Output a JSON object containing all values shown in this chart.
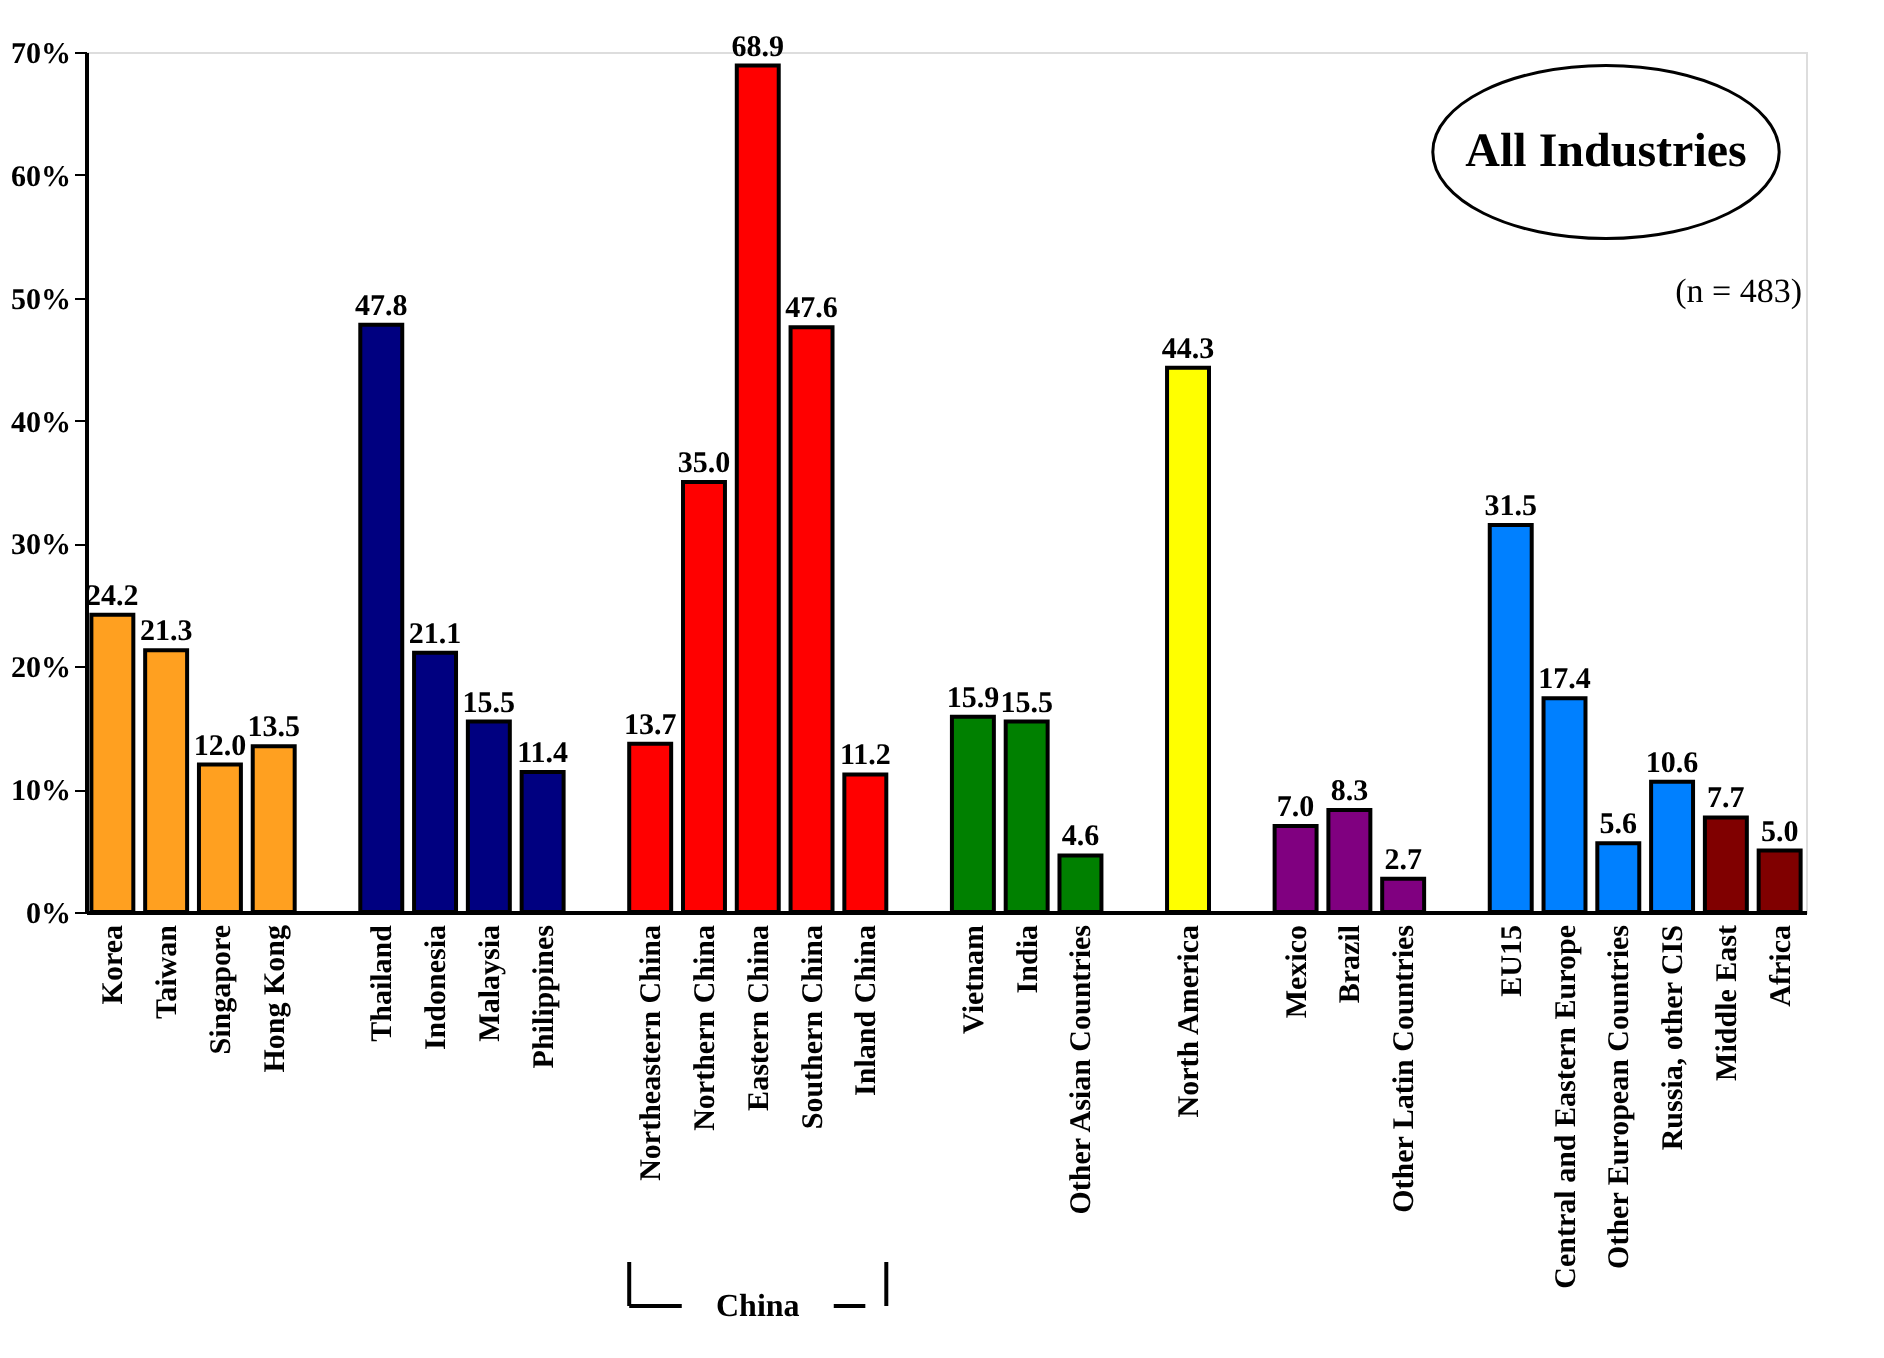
{
  "chart_data": {
    "type": "bar",
    "categories": [
      "Korea",
      "Taiwan",
      "Singapore",
      "Hong Kong",
      null,
      "Thailand",
      "Indonesia",
      "Malaysia",
      "Philippines",
      null,
      "Northeastern China",
      "Northern China",
      "Eastern China",
      "Southern China",
      "Inland China",
      null,
      "Vietnam",
      "India",
      "Other Asian Countries",
      null,
      "North America",
      null,
      "Mexico",
      "Brazil",
      "Other Latin Countries",
      null,
      "EU15",
      "Central and Eastern Europe",
      "Other European Countries",
      "Russia, other CIS",
      "Middle East",
      "Africa"
    ],
    "values": [
      24.2,
      21.3,
      12.0,
      13.5,
      null,
      47.8,
      21.1,
      15.5,
      11.4,
      null,
      13.7,
      35.0,
      68.9,
      47.6,
      11.2,
      null,
      15.9,
      15.5,
      4.6,
      null,
      44.3,
      null,
      7.0,
      8.3,
      2.7,
      null,
      31.5,
      17.4,
      5.6,
      10.6,
      7.7,
      5.0
    ],
    "colors": [
      "#ffa020",
      "#ffa020",
      "#ffa020",
      "#ffa020",
      "#ffffff",
      "#000080",
      "#000080",
      "#000080",
      "#000080",
      "#ffffff",
      "#ff0000",
      "#ff0000",
      "#ff0000",
      "#ff0000",
      "#ff0000",
      "#ffffff",
      "#008000",
      "#008000",
      "#008000",
      "#ffffff",
      "#ffff00",
      "#ffffff",
      "#800080",
      "#800080",
      "#800080",
      "#ffffff",
      "#0080ff",
      "#0080ff",
      "#0080ff",
      "#0080ff",
      "#800000",
      "#800000"
    ],
    "ylim": [
      0,
      70
    ],
    "yticks": [
      {
        "value": 0,
        "label": "0%"
      },
      {
        "value": 10,
        "label": "10%"
      },
      {
        "value": 20,
        "label": "20%"
      },
      {
        "value": 30,
        "label": "30%"
      },
      {
        "value": 40,
        "label": "40%"
      },
      {
        "value": 50,
        "label": "50%"
      },
      {
        "value": 60,
        "label": "60%"
      },
      {
        "value": 70,
        "label": "70%"
      }
    ],
    "value_labels": [
      "24.2",
      "21.3",
      "12.0",
      "13.5",
      null,
      "47.8",
      "21.1",
      "15.5",
      "11.4",
      null,
      "13.7",
      "35.0",
      "68.9",
      "47.6",
      "11.2",
      null,
      "15.9",
      "15.5",
      "4.6",
      null,
      "44.3",
      null,
      "7.0",
      "8.3",
      "2.7",
      null,
      "31.5",
      "17.4",
      "5.6",
      "10.6",
      "7.7",
      "5.0"
    ],
    "grid": false,
    "annotations": [
      "All Industries",
      "(n = 483)",
      "China"
    ]
  }
}
